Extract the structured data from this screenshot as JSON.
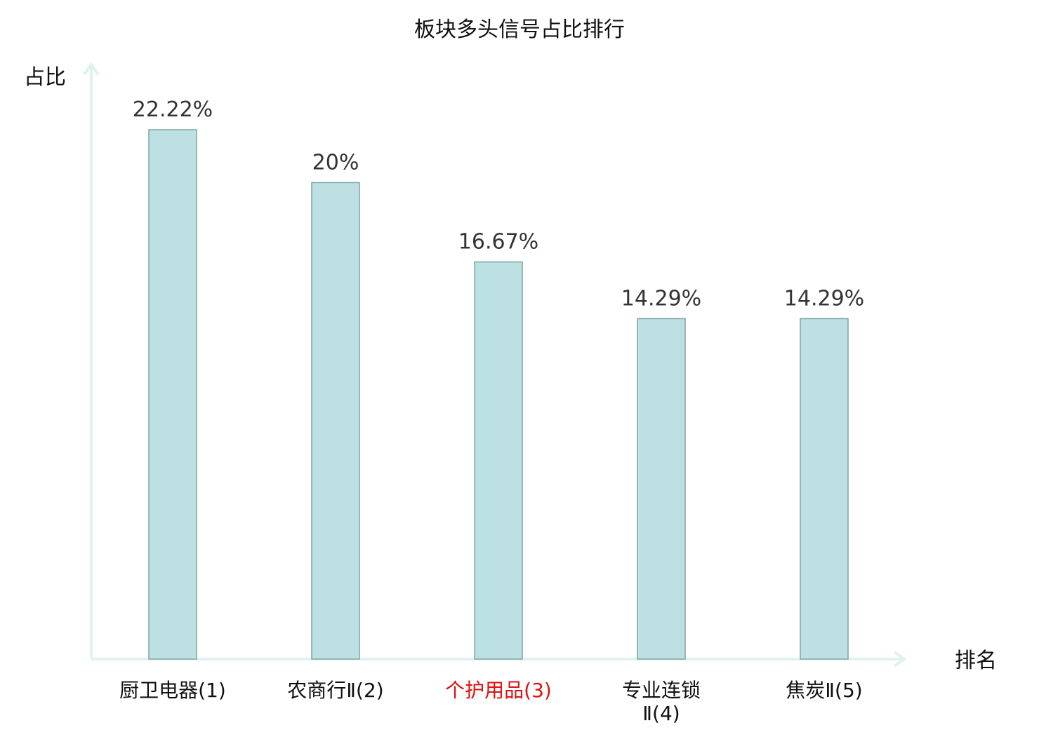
{
  "chart_data": {
    "type": "bar",
    "title": "板块多头信号占比排行",
    "ylabel": "占比",
    "xlabel": "排名",
    "categories": [
      {
        "lines": [
          "厨卫电器(1)"
        ],
        "highlight": false
      },
      {
        "lines": [
          "农商行Ⅱ(2)"
        ],
        "highlight": false
      },
      {
        "lines": [
          "个护用品(3)"
        ],
        "highlight": true
      },
      {
        "lines": [
          "专业连锁",
          "Ⅱ(4)"
        ],
        "highlight": false
      },
      {
        "lines": [
          "焦炭Ⅱ(5)"
        ],
        "highlight": false
      }
    ],
    "values": [
      22.22,
      20,
      16.67,
      14.29,
      14.29
    ],
    "value_labels": [
      "22.22%",
      "20%",
      "16.67%",
      "14.29%",
      "14.29%"
    ],
    "ylim": [
      0,
      25
    ],
    "grid": false,
    "legend": "none",
    "colors": {
      "bar_fill": "#bde1e3",
      "bar_stroke": "#7fa4a5",
      "axis": "#dff2ef",
      "label_text": "#333333",
      "highlight_text": "#e01010",
      "title_text": "#111111"
    }
  }
}
